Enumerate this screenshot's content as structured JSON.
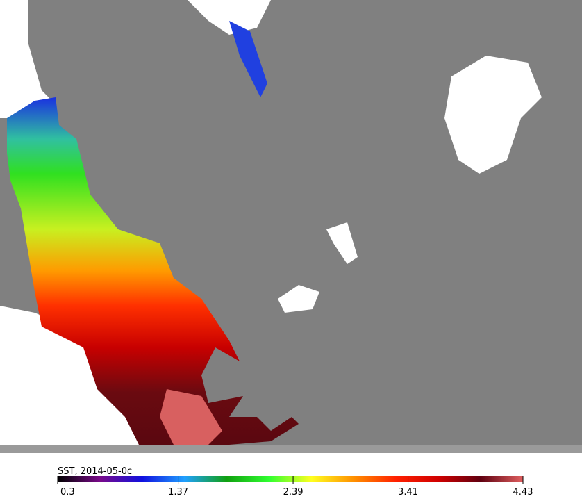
{
  "colorbar": {
    "title": "SST, 2014-05-0c",
    "ticks": [
      0.3,
      1.37,
      2.39,
      3.41,
      4.43
    ],
    "colors": [
      "#000000",
      "#7a0a8a",
      "#1010e0",
      "#20a0ff",
      "#10a010",
      "#30ff30",
      "#ffff20",
      "#ff9000",
      "#ff2000",
      "#d00000",
      "#600010",
      "#e06060"
    ]
  }
}
